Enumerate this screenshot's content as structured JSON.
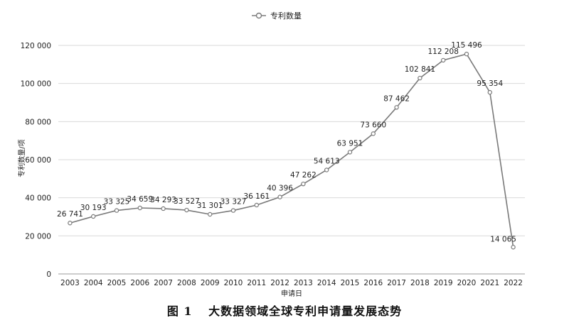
{
  "chart_data": {
    "type": "line",
    "legend": {
      "label": "专利数量",
      "position": "top-center"
    },
    "xlabel": "申请日",
    "ylabel": "专利数量/项",
    "ylim": [
      0,
      120000
    ],
    "yticks": [
      0,
      20000,
      40000,
      60000,
      80000,
      100000,
      120000
    ],
    "ytick_labels": [
      "0",
      "20 000",
      "40 000",
      "60 000",
      "80 000",
      "100 000",
      "120 000"
    ],
    "grid": "horizontal",
    "categories": [
      "2003",
      "2004",
      "2005",
      "2006",
      "2007",
      "2008",
      "2009",
      "2010",
      "2011",
      "2012",
      "2013",
      "2014",
      "2015",
      "2016",
      "2017",
      "2018",
      "2019",
      "2020",
      "2021",
      "2022"
    ],
    "series": [
      {
        "name": "专利数量",
        "color": "#7a7a7a",
        "values": [
          26741,
          30193,
          33325,
          34659,
          34293,
          33527,
          31301,
          33327,
          36161,
          40396,
          47262,
          54613,
          63951,
          73660,
          87462,
          102841,
          112208,
          115496,
          95354,
          14065
        ],
        "labels": [
          "26 741",
          "30 193",
          "33 325",
          "34 659",
          "34 293",
          "33 527",
          "31 301",
          "33 327",
          "36 161",
          "40 396",
          "47 262",
          "54 613",
          "63 951",
          "73 660",
          "87 462",
          "102 841",
          "112 208",
          "115 496",
          "95 354",
          "14 065"
        ]
      }
    ]
  },
  "caption": {
    "figure_no": "图 1",
    "title": "大数据领域全球专利申请量发展态势"
  }
}
